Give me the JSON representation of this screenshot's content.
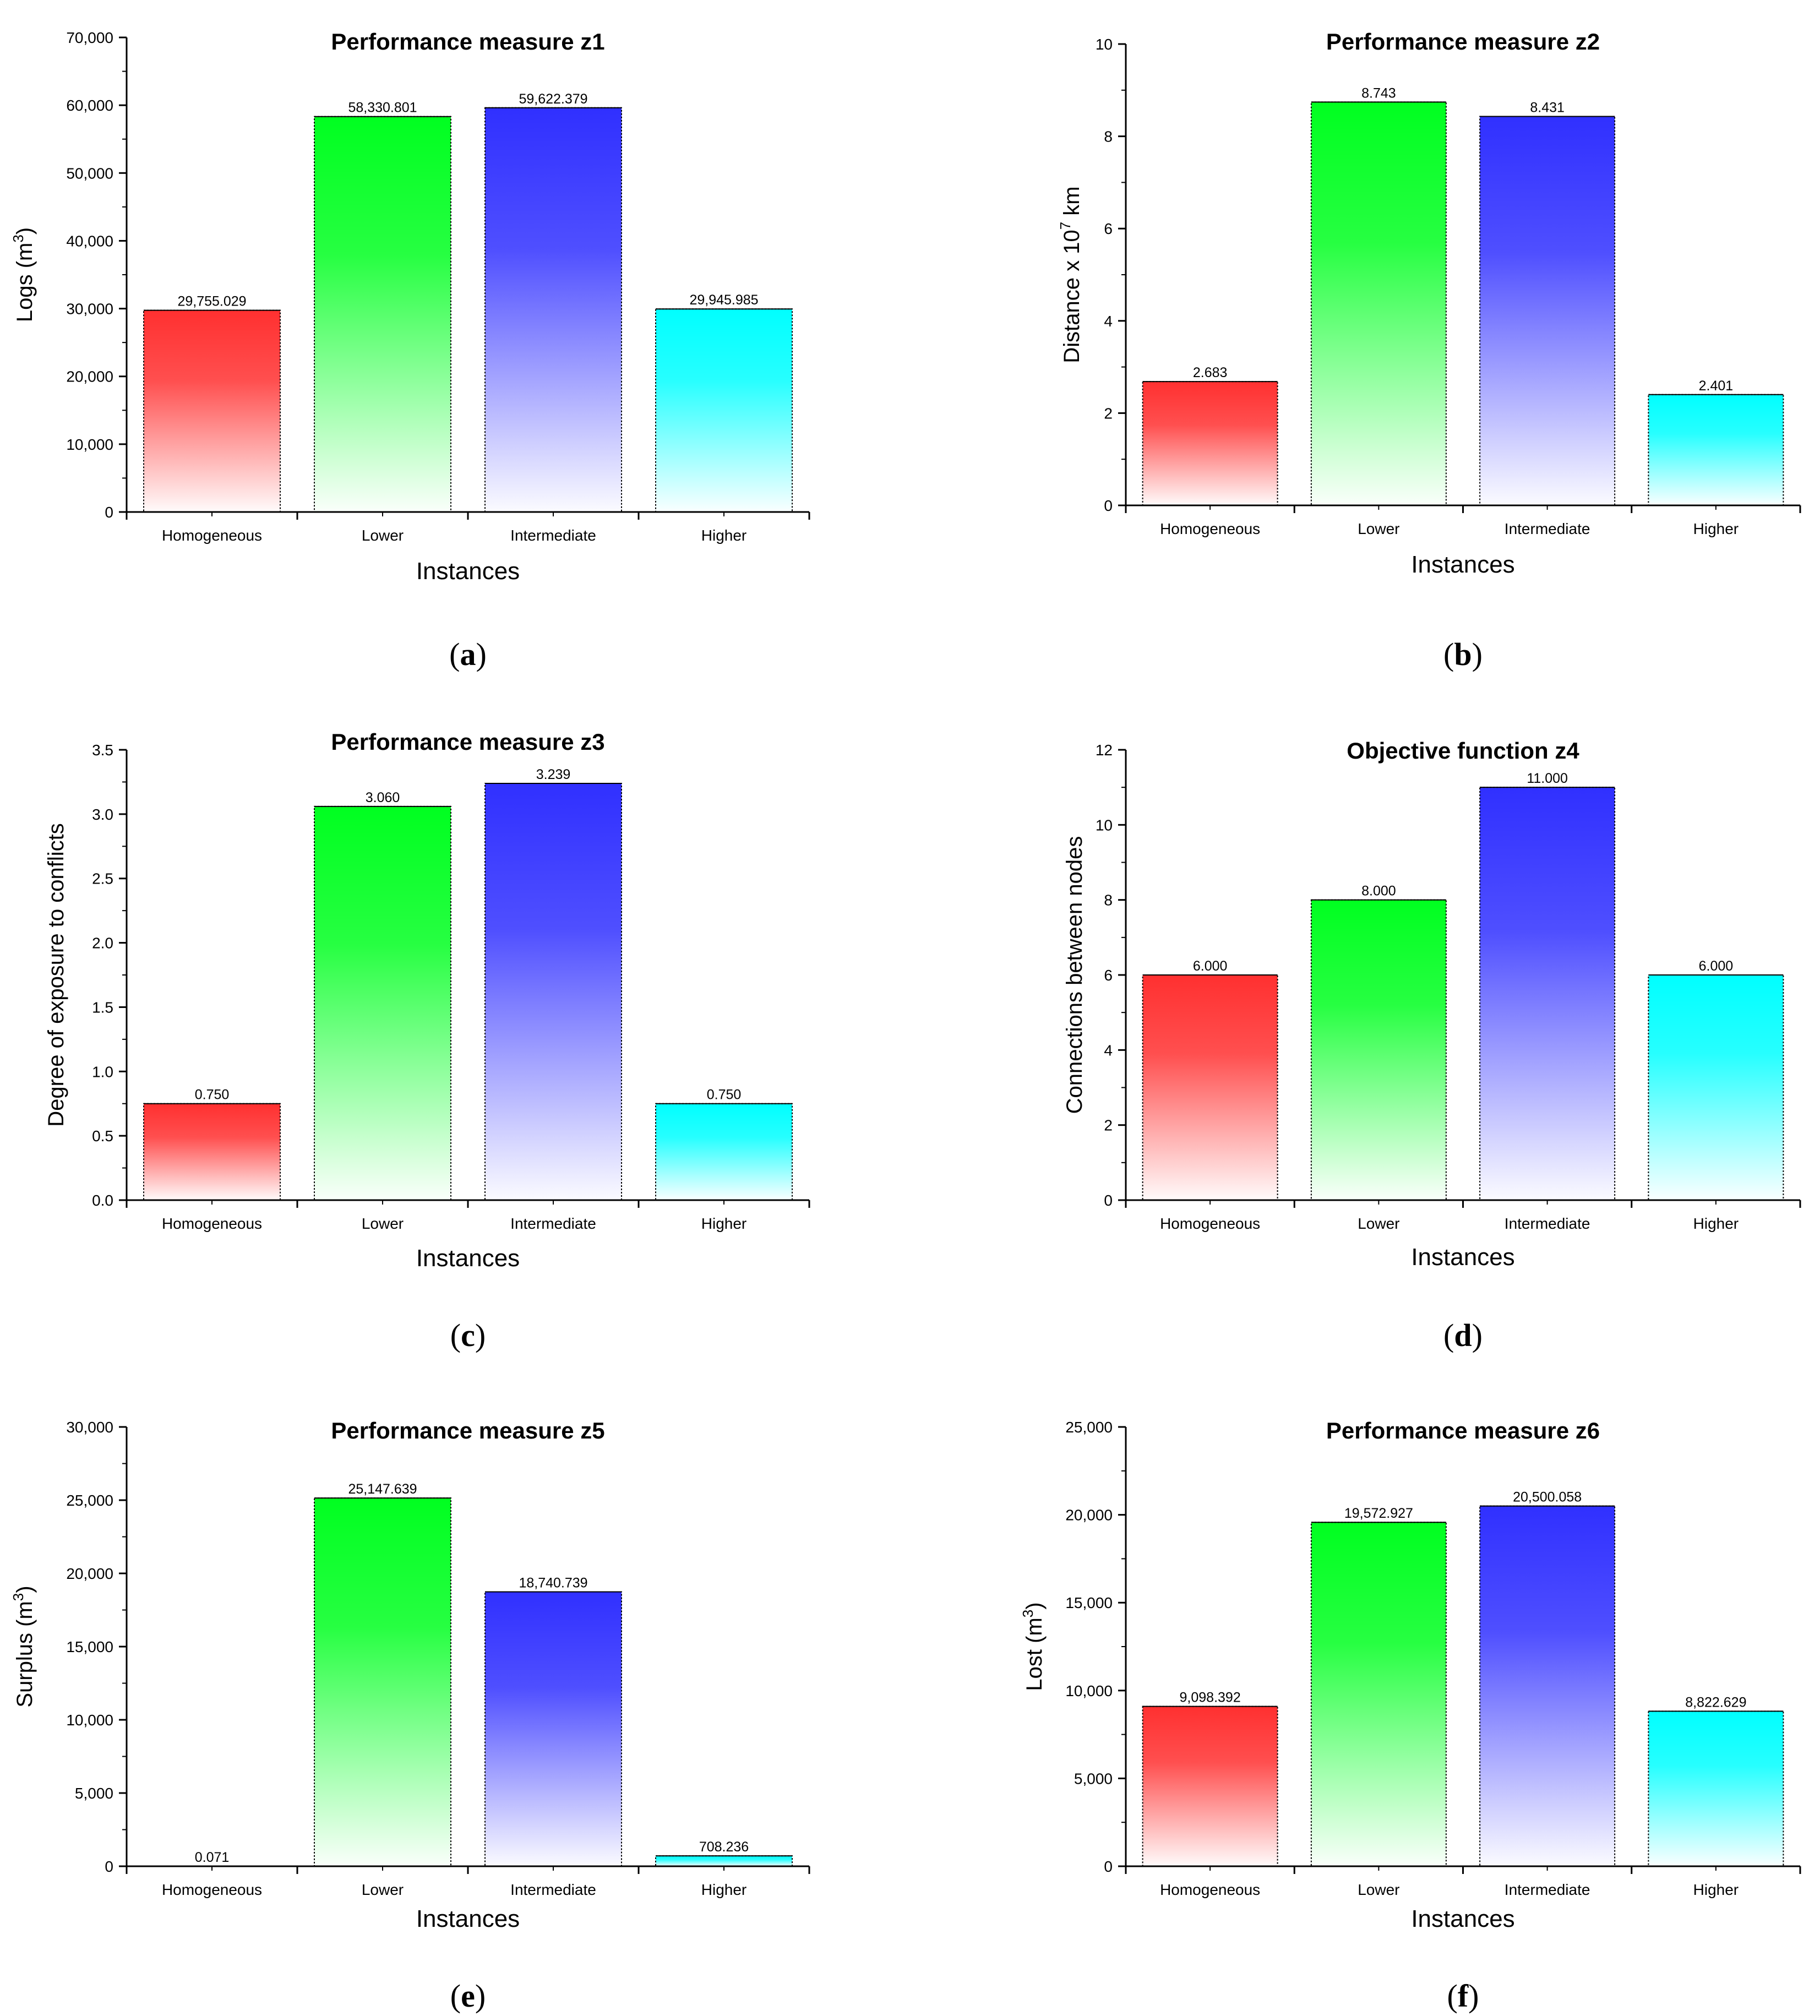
{
  "chart_data": [
    {
      "type": "bar",
      "panel": "(a)",
      "title": "Performance measure z1",
      "xlabel": "Instances",
      "ylabel": "Logs (m3)",
      "ylabel_parts": {
        "base": "Logs (m",
        "sup": "3",
        "tail": ")"
      },
      "categories": [
        "Homogeneous",
        "Lower",
        "Intermediate",
        "Higher"
      ],
      "values": [
        29755.029,
        58330.801,
        59622.379,
        29945.985
      ],
      "value_labels": [
        "29,755.029",
        "58,330.801",
        "59,622.379",
        "29,945.985"
      ],
      "ylim": [
        0,
        70000
      ],
      "yticks": [
        0,
        10000,
        20000,
        30000,
        40000,
        50000,
        60000,
        70000
      ],
      "ytick_labels": [
        "0",
        "10,000",
        "20,000",
        "30,000",
        "40,000",
        "50,000",
        "60,000",
        "70,000"
      ],
      "colors": [
        "#ff3030",
        "#00ff20",
        "#3030ff",
        "#00ffff"
      ]
    },
    {
      "type": "bar",
      "panel": "(b)",
      "title": "Performance measure z2",
      "xlabel": "Instances",
      "ylabel": "Distance x 107 km",
      "ylabel_parts": {
        "base": "Distance x 10",
        "sup": "7",
        "tail": " km"
      },
      "categories": [
        "Homogeneous",
        "Lower",
        "Intermediate",
        "Higher"
      ],
      "values": [
        2.683,
        8.743,
        8.431,
        2.401
      ],
      "value_labels": [
        "2.683",
        "8.743",
        "8.431",
        "2.401"
      ],
      "ylim": [
        0,
        10
      ],
      "yticks": [
        0,
        2,
        4,
        6,
        8,
        10
      ],
      "ytick_labels": [
        "0",
        "2",
        "4",
        "6",
        "8",
        "10"
      ],
      "colors": [
        "#ff3030",
        "#00ff20",
        "#3030ff",
        "#00ffff"
      ]
    },
    {
      "type": "bar",
      "panel": "(c)",
      "title": "Performance measure z3",
      "xlabel": "Instances",
      "ylabel": "Degree of exposure to conflicts",
      "ylabel_parts": {
        "base": "Degree of exposure to conflicts",
        "sup": "",
        "tail": ""
      },
      "categories": [
        "Homogeneous",
        "Lower",
        "Intermediate",
        "Higher"
      ],
      "values": [
        0.75,
        3.06,
        3.239,
        0.75
      ],
      "value_labels": [
        "0.750",
        "3.060",
        "3.239",
        "0.750"
      ],
      "ylim": [
        0,
        3.5
      ],
      "yticks": [
        0,
        0.5,
        1.0,
        1.5,
        2.0,
        2.5,
        3.0,
        3.5
      ],
      "ytick_labels": [
        "0.0",
        "0.5",
        "1.0",
        "1.5",
        "2.0",
        "2.5",
        "3.0",
        "3.5"
      ],
      "colors": [
        "#ff3030",
        "#00ff20",
        "#3030ff",
        "#00ffff"
      ]
    },
    {
      "type": "bar",
      "panel": "(d)",
      "title": "Objective function z4",
      "xlabel": "Instances",
      "ylabel": "Connections between nodes",
      "ylabel_parts": {
        "base": "Connections between nodes",
        "sup": "",
        "tail": ""
      },
      "categories": [
        "Homogeneous",
        "Lower",
        "Intermediate",
        "Higher"
      ],
      "values": [
        6.0,
        8.0,
        11.0,
        6.0
      ],
      "value_labels": [
        "6.000",
        "8.000",
        "11.000",
        "6.000"
      ],
      "ylim": [
        0,
        12
      ],
      "yticks": [
        0,
        2,
        4,
        6,
        8,
        10,
        12
      ],
      "ytick_labels": [
        "0",
        "2",
        "4",
        "6",
        "8",
        "10",
        "12"
      ],
      "colors": [
        "#ff3030",
        "#00ff20",
        "#3030ff",
        "#00ffff"
      ]
    },
    {
      "type": "bar",
      "panel": "(e)",
      "title": "Performance measure z5",
      "xlabel": "Instances",
      "ylabel": "Surplus (m3)",
      "ylabel_parts": {
        "base": "Surplus (m",
        "sup": "3",
        "tail": ")"
      },
      "categories": [
        "Homogeneous",
        "Lower",
        "Intermediate",
        "Higher"
      ],
      "values": [
        0.071,
        25147.639,
        18740.739,
        708.236
      ],
      "value_labels": [
        "0.071",
        "25,147.639",
        "18,740.739",
        "708.236"
      ],
      "ylim": [
        0,
        30000
      ],
      "yticks": [
        0,
        5000,
        10000,
        15000,
        20000,
        25000,
        30000
      ],
      "ytick_labels": [
        "0",
        "5,000",
        "10,000",
        "15,000",
        "20,000",
        "25,000",
        "30,000"
      ],
      "colors": [
        "#ff3030",
        "#00ff20",
        "#3030ff",
        "#00ffff"
      ]
    },
    {
      "type": "bar",
      "panel": "(f)",
      "title": "Performance measure z6",
      "xlabel": "Instances",
      "ylabel": "Lost (m3)",
      "ylabel_parts": {
        "base": "Lost (m",
        "sup": "3",
        "tail": ")"
      },
      "categories": [
        "Homogeneous",
        "Lower",
        "Intermediate",
        "Higher"
      ],
      "values": [
        9098.392,
        19572.927,
        20500.058,
        8822.629
      ],
      "value_labels": [
        "9,098.392",
        "19,572.927",
        "20,500.058",
        "8,822.629"
      ],
      "ylim": [
        0,
        25000
      ],
      "yticks": [
        0,
        5000,
        10000,
        15000,
        20000,
        25000
      ],
      "ytick_labels": [
        "0",
        "5,000",
        "10,000",
        "15,000",
        "20,000",
        "25,000"
      ],
      "colors": [
        "#ff3030",
        "#00ff20",
        "#3030ff",
        "#00ffff"
      ]
    }
  ]
}
